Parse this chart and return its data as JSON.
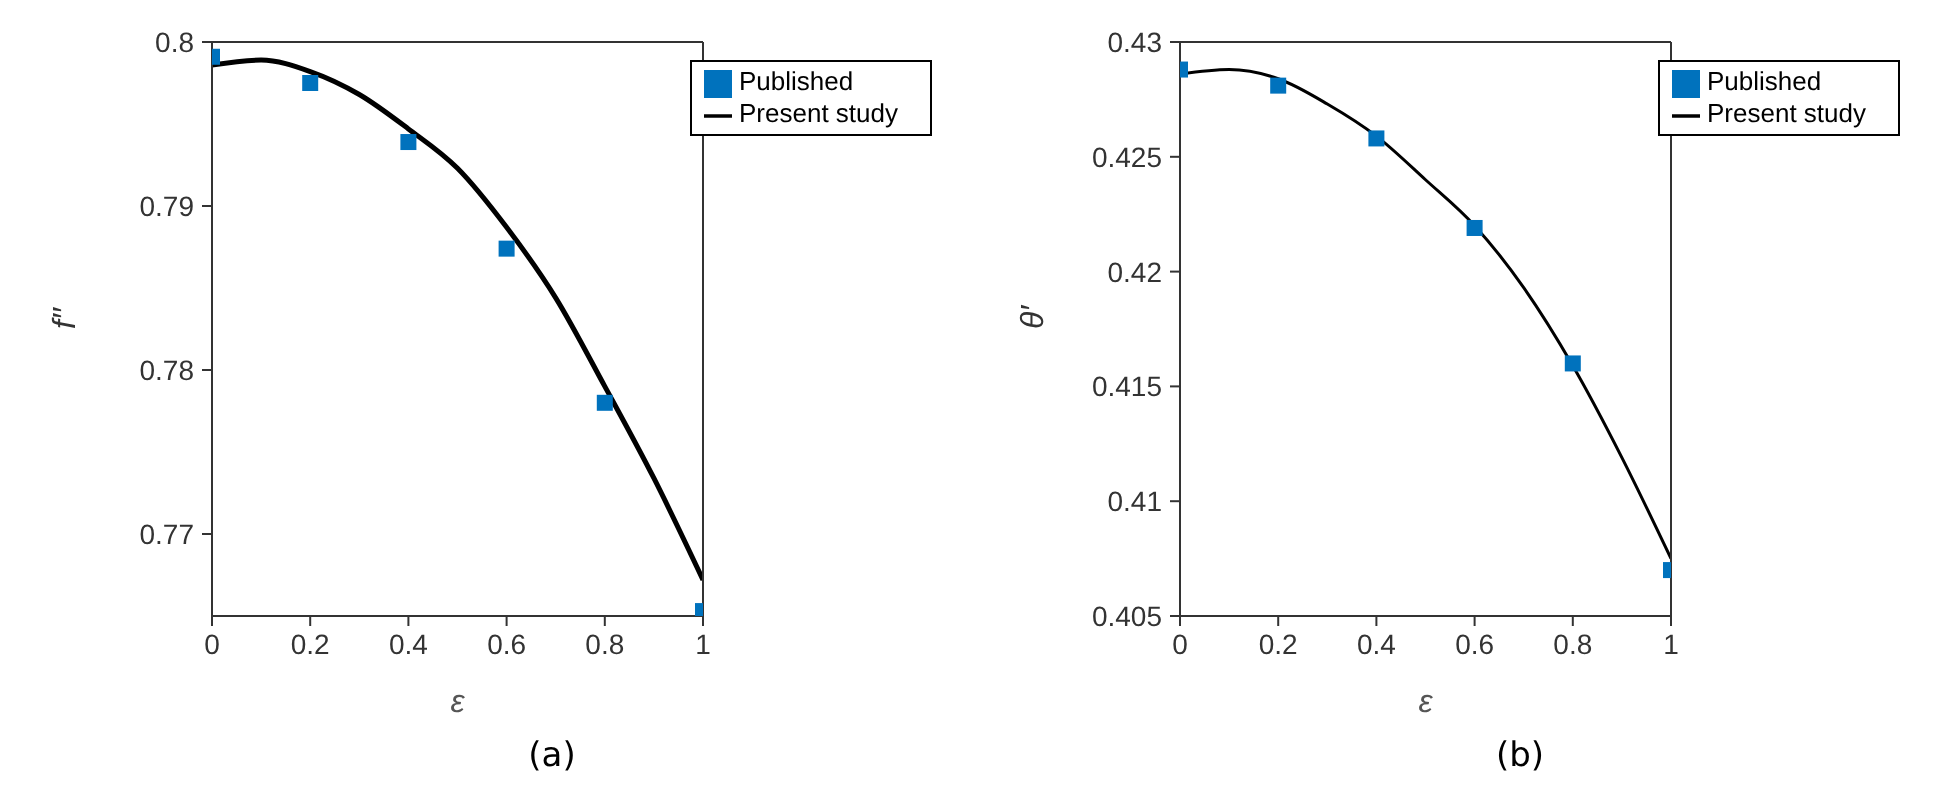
{
  "chart_data": [
    {
      "type": "scatter",
      "xlabel": "ε",
      "ylabel": "f′′",
      "xlim": [
        0,
        1
      ],
      "xticks": [
        0,
        0.2,
        0.4,
        0.6,
        0.8,
        1
      ],
      "ylim": [
        0.765,
        0.8
      ],
      "yticks": [
        0.77,
        0.78,
        0.79,
        0.8
      ],
      "legend": "top right",
      "annotations": [
        "(a)"
      ],
      "series": [
        {
          "name": "Published",
          "type": "scatter",
          "marker": "square",
          "color": "#0072bd",
          "x": [
            0,
            0.2,
            0.4,
            0.6,
            0.8,
            1
          ],
          "values": [
            0.7991,
            0.7975,
            0.7939,
            0.7874,
            0.778,
            0.7653
          ]
        },
        {
          "name": "Present study",
          "type": "line",
          "marker": "none",
          "color": "#000000",
          "x": [
            0,
            0.1,
            0.2,
            0.3,
            0.4,
            0.5,
            0.6,
            0.7,
            0.8,
            0.9,
            1
          ],
          "values": [
            0.7986,
            0.7989,
            0.7982,
            0.7968,
            0.7947,
            0.7923,
            0.7887,
            0.7844,
            0.779,
            0.7734,
            0.7672
          ]
        }
      ]
    },
    {
      "type": "scatter",
      "xlabel": "ε",
      "ylabel": "θ′",
      "xlim": [
        0,
        1
      ],
      "xticks": [
        0,
        0.2,
        0.4,
        0.6,
        0.8,
        1
      ],
      "ylim": [
        0.405,
        0.43
      ],
      "yticks": [
        0.405,
        0.41,
        0.415,
        0.42,
        0.425,
        0.43
      ],
      "legend": "top right",
      "annotations": [
        "(b)"
      ],
      "series": [
        {
          "name": "Published",
          "type": "scatter",
          "marker": "square",
          "color": "#0072bd",
          "x": [
            0,
            0.2,
            0.4,
            0.6,
            0.8,
            1
          ],
          "values": [
            0.4288,
            0.4281,
            0.4258,
            0.4219,
            0.416,
            0.407
          ]
        },
        {
          "name": "Present study",
          "type": "line",
          "marker": "none",
          "color": "#000000",
          "x": [
            0,
            0.1,
            0.2,
            0.3,
            0.4,
            0.5,
            0.6,
            0.7,
            0.8,
            0.9,
            1
          ],
          "values": [
            0.4286,
            0.4288,
            0.4284,
            0.4273,
            0.4259,
            0.424,
            0.422,
            0.4193,
            0.4159,
            0.4119,
            0.4075
          ]
        }
      ]
    }
  ]
}
